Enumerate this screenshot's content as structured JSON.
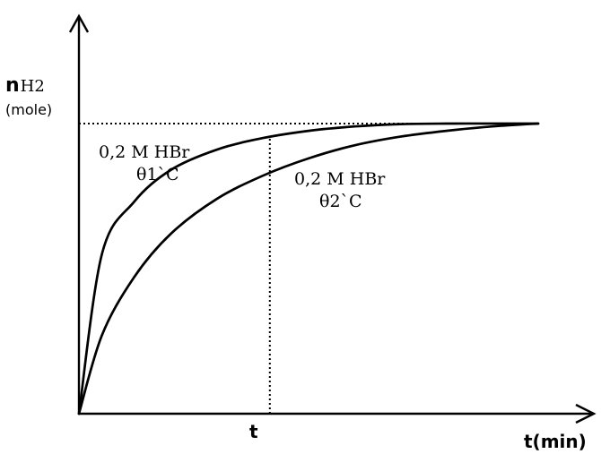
{
  "chart_data": {
    "type": "line",
    "title": "",
    "ylabel": "n",
    "ylabel_sub": "H2",
    "ylabel_unit": "(mole)",
    "xlabel": "t(min)",
    "x_tick_labels": [
      "t"
    ],
    "x_marker_label": "t",
    "grid": false,
    "legend": "none",
    "plateau_level_label": "",
    "series": [
      {
        "concentration": "0,2 M HBr",
        "temperature": "θ1`C",
        "x": [
          0,
          0.05,
          0.12,
          0.2,
          0.3,
          0.4,
          0.5,
          0.6,
          0.7,
          0.8,
          0.9,
          1.0
        ],
        "y": [
          0,
          0.55,
          0.73,
          0.84,
          0.91,
          0.95,
          0.975,
          0.99,
          0.998,
          1.0,
          1.0,
          1.0
        ]
      },
      {
        "concentration": "0,2 M HBr",
        "temperature": "θ2`C",
        "x": [
          0,
          0.05,
          0.12,
          0.2,
          0.3,
          0.4,
          0.5,
          0.6,
          0.7,
          0.8,
          0.9,
          1.0
        ],
        "y": [
          0,
          0.27,
          0.47,
          0.62,
          0.74,
          0.82,
          0.88,
          0.925,
          0.955,
          0.975,
          0.99,
          1.0
        ]
      }
    ],
    "reference_x": 0.4,
    "plateau_y": 1.0
  }
}
